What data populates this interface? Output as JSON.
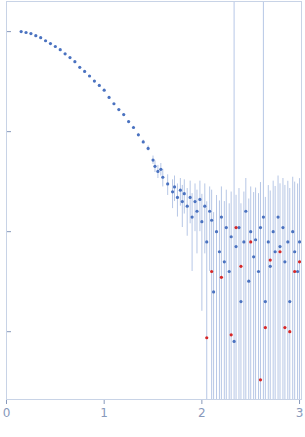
{
  "chart_data": {
    "type": "scatter",
    "log": "y",
    "tick_labels": "x",
    "grid": false,
    "xlim": [
      0,
      3.02
    ],
    "xticks": [
      0,
      1,
      2,
      3
    ],
    "ylim": [
      0.00021,
      2
    ],
    "yticks": [
      1,
      0.1,
      0.01,
      0.001
    ],
    "series": [
      {
        "color": "#4a72c0",
        "marker": "circle",
        "x": [
          0.15,
          0.2,
          0.25,
          0.3,
          0.35,
          0.4,
          0.45,
          0.5,
          0.55,
          0.6,
          0.65,
          0.7,
          0.75,
          0.8,
          0.85,
          0.9,
          0.95,
          1.0,
          1.05,
          1.1,
          1.15,
          1.2,
          1.25,
          1.3,
          1.35,
          1.4,
          1.45,
          1.5,
          1.52,
          1.55,
          1.58,
          1.6,
          1.65,
          1.7,
          1.72,
          1.75,
          1.78,
          1.8,
          1.82,
          1.85,
          1.88,
          1.9,
          1.93,
          1.95,
          1.98,
          2.0,
          2.03,
          2.05,
          2.08,
          2.1,
          2.12,
          2.15,
          2.18,
          2.2,
          2.23,
          2.25,
          2.28,
          2.3,
          2.33,
          2.35,
          2.38,
          2.4,
          2.43,
          2.45,
          2.48,
          2.5,
          2.53,
          2.55,
          2.58,
          2.6,
          2.63,
          2.65,
          2.68,
          2.7,
          2.73,
          2.75,
          2.78,
          2.8,
          2.83,
          2.85,
          2.88,
          2.9,
          2.93,
          2.95,
          2.98,
          3.0
        ],
        "values": [
          1.0,
          0.98,
          0.955,
          0.91,
          0.87,
          0.81,
          0.76,
          0.71,
          0.66,
          0.6,
          0.55,
          0.5,
          0.44,
          0.4,
          0.36,
          0.32,
          0.29,
          0.26,
          0.22,
          0.19,
          0.166,
          0.148,
          0.126,
          0.11,
          0.093,
          0.079,
          0.068,
          0.052,
          0.045,
          0.04,
          0.042,
          0.035,
          0.03,
          0.025,
          0.028,
          0.022,
          0.026,
          0.02,
          0.024,
          0.018,
          0.022,
          0.014,
          0.02,
          0.016,
          0.021,
          0.0126,
          0.018,
          0.0079,
          0.016,
          0.013,
          0.0025,
          0.01,
          0.0063,
          0.014,
          0.005,
          0.011,
          0.004,
          0.0089,
          0.0008,
          0.0071,
          0.011,
          0.002,
          0.0079,
          0.016,
          0.0032,
          0.01,
          0.0056,
          0.0083,
          0.004,
          0.011,
          0.014,
          0.002,
          0.0079,
          0.0045,
          0.01,
          0.0063,
          0.014,
          0.0071,
          0.011,
          0.005,
          0.0079,
          0.002,
          0.01,
          0.0063,
          0.004,
          0.0079
        ],
        "errors": [
          0.002,
          0.002,
          0.002,
          0.002,
          0.002,
          0.002,
          0.002,
          0.002,
          0.002,
          0.002,
          0.002,
          0.002,
          0.002,
          0.002,
          0.002,
          0.002,
          0.002,
          0.002,
          0.002,
          0.002,
          0.002,
          0.002,
          0.002,
          0.003,
          0.003,
          0.003,
          0.004,
          0.005,
          0.006,
          0.006,
          0.006,
          0.007,
          0.007,
          0.008,
          0.008,
          0.008,
          0.008,
          0.009,
          0.009,
          0.009,
          0.01,
          0.01,
          0.01,
          0.01,
          0.011,
          0.011,
          0.012,
          0.012,
          0.012,
          0.013,
          0.013,
          0.013,
          0.014,
          0.014,
          0.015,
          0.015,
          0.015,
          0.016,
          5,
          0.016,
          0.016,
          0.017,
          0.017,
          0.018,
          0.018,
          0.018,
          0.019,
          0.019,
          0.02,
          0.02,
          5,
          0.02,
          0.021,
          0.021,
          0.022,
          0.022,
          0.022,
          0.023,
          0.023,
          0.024,
          0.024,
          0.025,
          0.025,
          0.025,
          0.026,
          0.026
        ]
      },
      {
        "color": "#d62728",
        "marker": "circle",
        "x": [
          2.05,
          2.1,
          2.2,
          2.3,
          2.35,
          2.4,
          2.5,
          2.6,
          2.65,
          2.7,
          2.8,
          2.85,
          2.9,
          2.95,
          3.0
        ],
        "values": [
          0.00087,
          0.004,
          0.0035,
          0.00093,
          0.011,
          0.0045,
          0.0079,
          0.00033,
          0.0011,
          0.0052,
          0.0063,
          0.0011,
          0.001,
          0.004,
          0.005
        ]
      }
    ]
  }
}
